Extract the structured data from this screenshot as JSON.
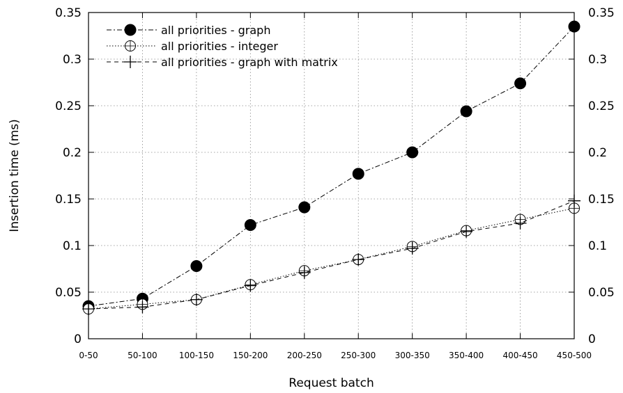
{
  "chart_data": {
    "type": "line",
    "title": "",
    "xlabel": "Request batch",
    "ylabel": "Insertion time (ms)",
    "categories": [
      "0-50",
      "50-100",
      "100-150",
      "150-200",
      "200-250",
      "250-300",
      "300-350",
      "350-400",
      "400-450",
      "450-500"
    ],
    "ylim": [
      0,
      0.35
    ],
    "yticks": [
      "0",
      "0.05",
      "0.1",
      "0.15",
      "0.2",
      "0.25",
      "0.3",
      "0.35"
    ],
    "y2ticks": [
      "0",
      "0.05",
      "0.1",
      "0.15",
      "0.2",
      "0.25",
      "0.3",
      "0.35"
    ],
    "grid": true,
    "legend_position": "top-left",
    "series": [
      {
        "name": "all priorities - graph",
        "marker": "filled-circle",
        "line": "dash-dot",
        "values": [
          0.035,
          0.043,
          0.078,
          0.122,
          0.141,
          0.177,
          0.2,
          0.244,
          0.274,
          0.335
        ]
      },
      {
        "name": "all priorities - integer",
        "marker": "open-circle-plus",
        "line": "dotted",
        "values": [
          0.032,
          0.037,
          0.042,
          0.058,
          0.073,
          0.085,
          0.099,
          0.116,
          0.128,
          0.14
        ]
      },
      {
        "name": "all priorities - graph with matrix",
        "marker": "plus",
        "line": "dashed",
        "values": [
          0.032,
          0.034,
          0.042,
          0.057,
          0.071,
          0.085,
          0.097,
          0.115,
          0.124,
          0.148
        ]
      }
    ]
  }
}
